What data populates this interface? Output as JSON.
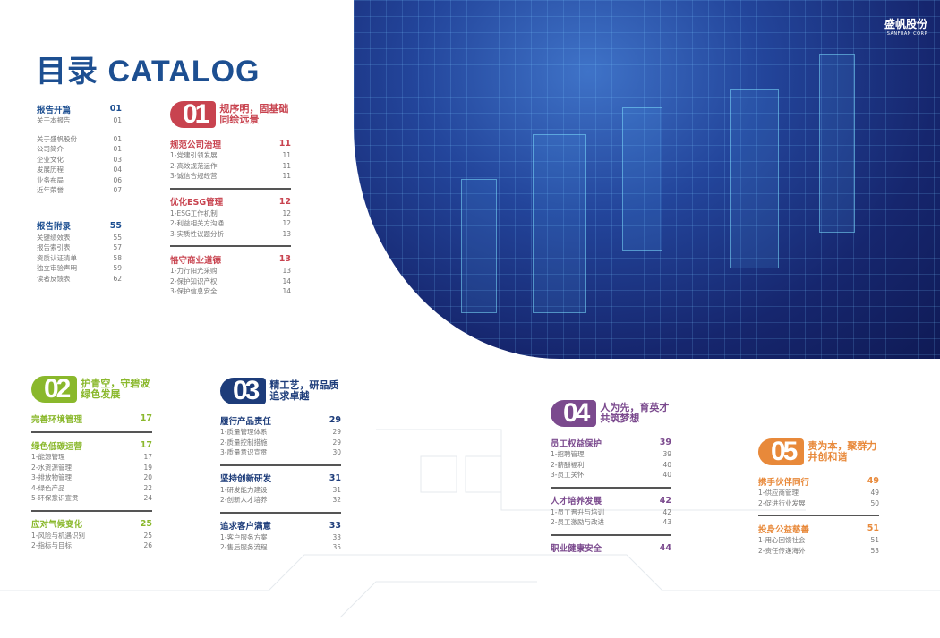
{
  "header": {
    "title": "目录 CATALOG",
    "logo_cn": "盛帆股份",
    "logo_en": "SANFRAN CORP"
  },
  "colors": {
    "opening": "#1d4f91",
    "s01": "#c8434f",
    "s02": "#8ab82c",
    "s03": "#1d3c7a",
    "s04": "#7b4a8e",
    "s05": "#e8893a"
  },
  "opening": {
    "groups": [
      {
        "title": "报告开篇",
        "page": "01",
        "items": [
          {
            "label": "关于本报告",
            "page": "01"
          },
          {
            "gap": true
          },
          {
            "label": "关于盛帆股份",
            "page": "01"
          },
          {
            "label": "公司简介",
            "page": "01"
          },
          {
            "label": "企业文化",
            "page": "03"
          },
          {
            "label": "发展历程",
            "page": "04"
          },
          {
            "label": "业务布局",
            "page": "06"
          },
          {
            "label": "近年荣誉",
            "page": "07"
          }
        ]
      },
      {
        "title": "报告附录",
        "page": "55",
        "items": [
          {
            "label": "关键绩效表",
            "page": "55"
          },
          {
            "label": "报告索引表",
            "page": "57"
          },
          {
            "label": "资质认证清单",
            "page": "58"
          },
          {
            "label": "独立审验声明",
            "page": "59"
          },
          {
            "label": "读者反馈表",
            "page": "62"
          }
        ]
      }
    ]
  },
  "sections": [
    {
      "num": "01",
      "title": [
        "规序明，固基础",
        "同绘远景"
      ],
      "color": "#c8434f",
      "groups": [
        {
          "title": "规范公司治理",
          "page": "11",
          "items": [
            {
              "label": "1-党建引领发展",
              "page": "11"
            },
            {
              "label": "2-高效规范运作",
              "page": "11"
            },
            {
              "label": "3-诚信合规经营",
              "page": "11"
            }
          ]
        },
        {
          "title": "优化ESG管理",
          "page": "12",
          "items": [
            {
              "label": "1-ESG工作机制",
              "page": "12"
            },
            {
              "label": "2-利益相关方沟通",
              "page": "12"
            },
            {
              "label": "3-实质性议题分析",
              "page": "13"
            }
          ]
        },
        {
          "title": "恪守商业道德",
          "page": "13",
          "items": [
            {
              "label": "1-力行阳光采购",
              "page": "13"
            },
            {
              "label": "2-保护知识产权",
              "page": "14"
            },
            {
              "label": "3-保护信息安全",
              "page": "14"
            }
          ]
        }
      ]
    },
    {
      "num": "02",
      "title": [
        "护青空，守碧波",
        "绿色发展"
      ],
      "color": "#8ab82c",
      "groups": [
        {
          "title": "完善环境管理",
          "page": "17",
          "items": []
        },
        {
          "title": "绿色低碳运营",
          "page": "17",
          "items": [
            {
              "label": "1-能源管理",
              "page": "17"
            },
            {
              "label": "2-水资源管理",
              "page": "19"
            },
            {
              "label": "3-排放物管理",
              "page": "20"
            },
            {
              "label": "4-绿色产品",
              "page": "22"
            },
            {
              "label": "5-环保意识宣贯",
              "page": "24"
            }
          ]
        },
        {
          "title": "应对气候变化",
          "page": "25",
          "items": [
            {
              "label": "1-风险与机遇识别",
              "page": "25"
            },
            {
              "label": "2-指标与目标",
              "page": "26"
            }
          ]
        }
      ]
    },
    {
      "num": "03",
      "title": [
        "精工艺，研品质",
        "追求卓越"
      ],
      "color": "#1d3c7a",
      "groups": [
        {
          "title": "履行产品责任",
          "page": "29",
          "items": [
            {
              "label": "1-质量管理体系",
              "page": "29"
            },
            {
              "label": "2-质量控制措施",
              "page": "29"
            },
            {
              "label": "3-质量意识宣贯",
              "page": "30"
            }
          ]
        },
        {
          "title": "坚持创新研发",
          "page": "31",
          "items": [
            {
              "label": "1-研发能力建设",
              "page": "31"
            },
            {
              "label": "2-创新人才培养",
              "page": "32"
            }
          ]
        },
        {
          "title": "追求客户满意",
          "page": "33",
          "items": [
            {
              "label": "1-客户服务方案",
              "page": "33"
            },
            {
              "label": "2-售后服务流程",
              "page": "35"
            }
          ]
        }
      ]
    },
    {
      "num": "04",
      "title": [
        "人为先，育英才",
        "共筑梦想"
      ],
      "color": "#7b4a8e",
      "groups": [
        {
          "title": "员工权益保护",
          "page": "39",
          "items": [
            {
              "label": "1-招聘管理",
              "page": "39"
            },
            {
              "label": "2-薪酬福利",
              "page": "40"
            },
            {
              "label": "3-员工关怀",
              "page": "40"
            }
          ]
        },
        {
          "title": "人才培养发展",
          "page": "42",
          "items": [
            {
              "label": "1-员工晋升与培训",
              "page": "42"
            },
            {
              "label": "2-员工激励与改进",
              "page": "43"
            }
          ]
        },
        {
          "title": "职业健康安全",
          "page": "44",
          "items": []
        }
      ]
    },
    {
      "num": "05",
      "title": [
        "责为本，聚群力",
        "井创和谐"
      ],
      "color": "#e8893a",
      "groups": [
        {
          "title": "携手伙伴同行",
          "page": "49",
          "items": [
            {
              "label": "1-供应商管理",
              "page": "49"
            },
            {
              "label": "2-促进行业发展",
              "page": "50"
            }
          ]
        },
        {
          "title": "投身公益慈善",
          "page": "51",
          "items": [
            {
              "label": "1-用心回馈社会",
              "page": "51"
            },
            {
              "label": "2-责任传递海外",
              "page": "53"
            }
          ]
        }
      ]
    }
  ]
}
